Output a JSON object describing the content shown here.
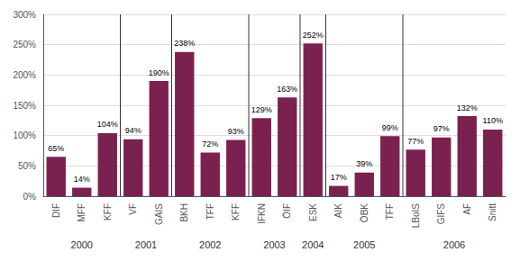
{
  "chart_data": {
    "type": "bar",
    "categories": [
      "DIF",
      "MFF",
      "KFF",
      "VF",
      "GAIS",
      "BKH",
      "TFF",
      "KFF",
      "IFKN",
      "ÖIF",
      "ESK",
      "AIK",
      "ÖBK",
      "TFF",
      "LBoIS",
      "GIFS",
      "AF",
      "Snitt"
    ],
    "values": [
      65,
      14,
      104,
      94,
      190,
      238,
      72,
      93,
      129,
      163,
      252,
      17,
      39,
      99,
      77,
      97,
      132,
      110
    ],
    "value_labels": [
      "65%",
      "14%",
      "104%",
      "94%",
      "190%",
      "238%",
      "72%",
      "93%",
      "129%",
      "163%",
      "252%",
      "17%",
      "39%",
      "99%",
      "77%",
      "97%",
      "132%",
      "110%"
    ],
    "data_labels": true,
    "color": "#7B2150",
    "ylim": [
      0,
      300
    ],
    "yticks": [
      {
        "value": 0,
        "label": "0%"
      },
      {
        "value": 50,
        "label": "50%"
      },
      {
        "value": 100,
        "label": "100%"
      },
      {
        "value": 150,
        "label": "150%"
      },
      {
        "value": 200,
        "label": "200%"
      },
      {
        "value": 250,
        "label": "250%"
      },
      {
        "value": 300,
        "label": "300%"
      }
    ],
    "grid": true,
    "groups": [
      {
        "label": "2000",
        "indices": [
          0,
          1,
          2
        ]
      },
      {
        "label": "2001",
        "indices": [
          3,
          4
        ]
      },
      {
        "label": "2002",
        "indices": [
          5,
          6,
          7
        ]
      },
      {
        "label": "2003",
        "indices": [
          8,
          9
        ]
      },
      {
        "label": "2004",
        "indices": [
          10
        ]
      },
      {
        "label": "2005",
        "indices": [
          11,
          12,
          13
        ]
      },
      {
        "label": "2006",
        "indices": [
          14,
          15,
          16,
          17
        ]
      }
    ]
  }
}
